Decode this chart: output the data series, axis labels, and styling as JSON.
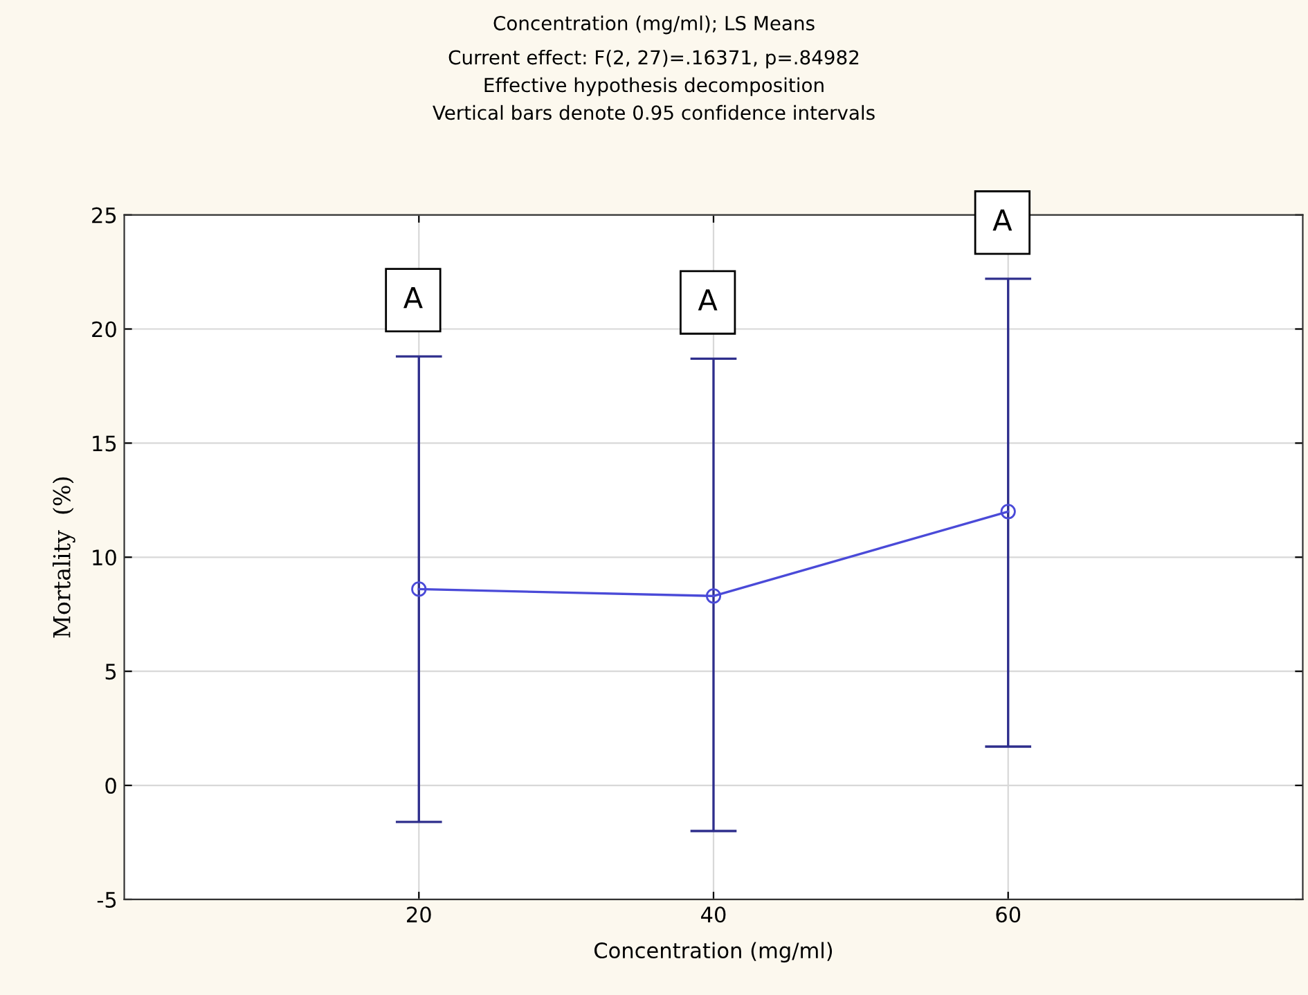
{
  "chart_data": {
    "type": "line",
    "title": "Concentration (mg/ml); LS Means",
    "subtitle": "Current effect: F(2, 27)=.16371, p=.84982\nEffective hypothesis decomposition\nVertical bars denote 0.95 confidence intervals",
    "xlabel": "Concentration (mg/ml)",
    "ylabel": "Mortality  (%)",
    "x": [
      20,
      40,
      60
    ],
    "series": [
      {
        "color": "#4a4ad8",
        "values": [
          8.6,
          8.3,
          12.0
        ],
        "errors": [
          [
            -1.6,
            18.8
          ],
          [
            -2.0,
            18.7
          ],
          [
            1.7,
            22.2
          ]
        ]
      }
    ],
    "annotations": [
      "A",
      "A",
      "A"
    ],
    "xlim": [
      0,
      80
    ],
    "xticks": [
      20,
      40,
      60
    ],
    "ylim": [
      -5,
      25
    ],
    "yticks": [
      -5,
      0,
      5,
      10,
      15,
      20,
      25
    ],
    "grid": true,
    "marker": "circle",
    "line_style": "solid",
    "legend": false
  }
}
